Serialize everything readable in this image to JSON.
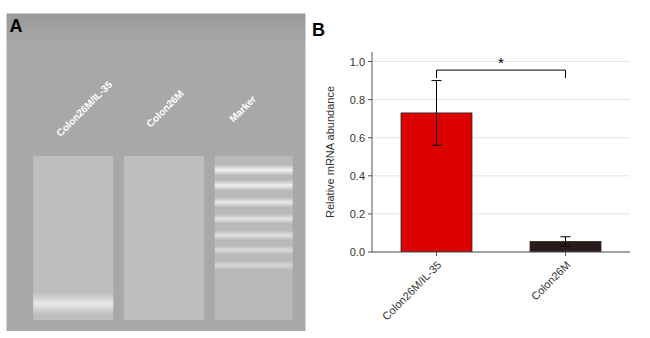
{
  "chart_data": [
    {
      "type": "image",
      "title": "A",
      "annotations": [
        "Colon26M/IL-35",
        "Colon26M",
        "Marker"
      ],
      "colors": [
        "#a8a8a8",
        "#c0c0c0",
        "#e8e8e8",
        "#f2f2f2"
      ]
    },
    {
      "type": "bar",
      "title": "B",
      "categories": [
        "Colon26M/IL-35",
        "Colon26M"
      ],
      "values": [
        0.73,
        0.055
      ],
      "errors": [
        0.17,
        0.025
      ],
      "colors": [
        "#dd0000",
        "#2a1a1a"
      ],
      "y_label": "Relative mRNA abundance",
      "ylim": [
        0,
        1.05
      ],
      "yticks": [
        {
          "value": 0.0,
          "label": "0.0"
        },
        0.2,
        0.4,
        0.6,
        0.8,
        {
          "value": 1.0,
          "label": "1.0"
        }
      ],
      "annotations": [
        {
          "label": "*",
          "y": 0.955,
          "between": [
            "Colon26M/IL-35",
            "Colon26M"
          ]
        }
      ]
    }
  ]
}
